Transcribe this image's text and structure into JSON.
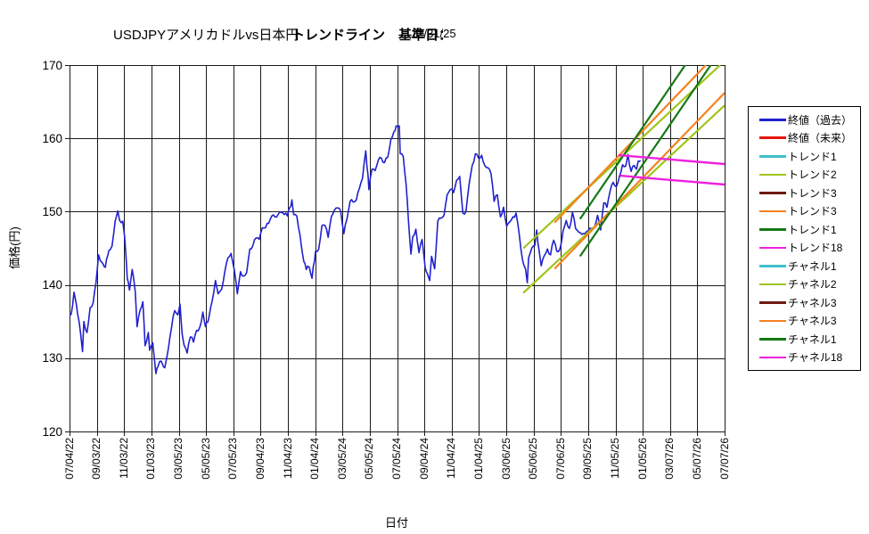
{
  "title": {
    "instrument": "USDJPYアメリカドルvs日本円",
    "section": "トレンドライン　基準日：",
    "base_date": "12/31/25"
  },
  "y_axis": {
    "label": "価格(円)",
    "min": 120,
    "max": 170,
    "step": 10,
    "ticks": [
      "170",
      "160",
      "150",
      "140",
      "130",
      "120"
    ]
  },
  "x_axis": {
    "label": "日付",
    "start_date": "2022-07-04",
    "end_date": "2026-07-07",
    "tick_interval_days": 61,
    "ticks": [
      "07/04/22",
      "09/03/22",
      "11/03/22",
      "01/03/23",
      "03/05/23",
      "05/05/23",
      "07/05/23",
      "09/04/23",
      "11/04/23",
      "01/04/24",
      "03/05/24",
      "05/05/24",
      "07/05/24",
      "09/04/24",
      "11/04/24",
      "01/04/25",
      "03/06/25",
      "05/06/25",
      "07/06/25",
      "09/05/25",
      "11/05/25",
      "01/05/26",
      "03/07/26",
      "05/07/26",
      "07/07/26"
    ]
  },
  "legend": {
    "items": [
      {
        "label": "終値（過去）",
        "color": "#2121CE",
        "thickness": 3
      },
      {
        "label": "終値（未来）",
        "color": "#E8150D",
        "thickness": 3
      },
      {
        "label": "トレンド1",
        "color": "#3FC0CC",
        "thickness": 2.5
      },
      {
        "label": "トレンド2",
        "color": "#9FC519",
        "thickness": 2.5
      },
      {
        "label": "トレンド3",
        "color": "#6D1A12",
        "thickness": 2.5
      },
      {
        "label": "トレンド3",
        "color": "#F5821F",
        "thickness": 2.5
      },
      {
        "label": "トレンド1",
        "color": "#157915",
        "thickness": 2.5
      },
      {
        "label": "トレンド18",
        "color": "#EE22DD",
        "thickness": 2.5
      },
      {
        "label": "チャネル1",
        "color": "#3FC0CC",
        "thickness": 2.5
      },
      {
        "label": "チャネル2",
        "color": "#9FC519",
        "thickness": 2.5
      },
      {
        "label": "チャネル3",
        "color": "#6D1A12",
        "thickness": 2.5
      },
      {
        "label": "チャネル3",
        "color": "#F5821F",
        "thickness": 2.5
      },
      {
        "label": "チャネル1",
        "color": "#157915",
        "thickness": 2.5
      },
      {
        "label": "チャネル18",
        "color": "#EE22DD",
        "thickness": 2.5
      }
    ]
  },
  "chart_data": {
    "type": "line",
    "title": "USDJPYアメリカドルvs日本円 トレンドライン 基準日：12/31/25",
    "xlabel": "日付",
    "ylabel": "価格(円)",
    "ylim": [
      120,
      170
    ],
    "x_range_dates": [
      "2022-07-04",
      "2026-07-07"
    ],
    "grid": true,
    "legend_position": "right",
    "base_date": "2025-12-31",
    "series": [
      {
        "name": "終値(過去)",
        "color": "#2121CE",
        "width": 1.6,
        "jitter": true,
        "points": [
          [
            "2022-07-04",
            135.7
          ],
          [
            "2022-07-08",
            136.1
          ],
          [
            "2022-07-14",
            139.0
          ],
          [
            "2022-07-22",
            136.1
          ],
          [
            "2022-07-29",
            133.2
          ],
          [
            "2022-08-02",
            130.9
          ],
          [
            "2022-08-05",
            135.0
          ],
          [
            "2022-08-12",
            133.5
          ],
          [
            "2022-08-19",
            136.9
          ],
          [
            "2022-08-26",
            137.6
          ],
          [
            "2022-09-01",
            140.2
          ],
          [
            "2022-09-07",
            144.1
          ],
          [
            "2022-09-14",
            143.1
          ],
          [
            "2022-09-22",
            142.4
          ],
          [
            "2022-09-30",
            144.7
          ],
          [
            "2022-10-07",
            145.3
          ],
          [
            "2022-10-14",
            148.7
          ],
          [
            "2022-10-20",
            150.1
          ],
          [
            "2022-10-24",
            148.8
          ],
          [
            "2022-10-31",
            148.7
          ],
          [
            "2022-11-04",
            146.6
          ],
          [
            "2022-11-10",
            140.9
          ],
          [
            "2022-11-15",
            139.3
          ],
          [
            "2022-11-21",
            142.1
          ],
          [
            "2022-11-28",
            139.0
          ],
          [
            "2022-12-02",
            134.3
          ],
          [
            "2022-12-09",
            136.6
          ],
          [
            "2022-12-15",
            137.7
          ],
          [
            "2022-12-20",
            131.7
          ],
          [
            "2022-12-27",
            133.5
          ],
          [
            "2022-12-30",
            131.1
          ],
          [
            "2023-01-06",
            132.1
          ],
          [
            "2023-01-13",
            127.9
          ],
          [
            "2023-01-18",
            128.9
          ],
          [
            "2023-01-25",
            129.6
          ],
          [
            "2023-02-02",
            128.7
          ],
          [
            "2023-02-10",
            131.4
          ],
          [
            "2023-02-17",
            134.2
          ],
          [
            "2023-02-24",
            136.5
          ],
          [
            "2023-03-03",
            135.9
          ],
          [
            "2023-03-08",
            137.4
          ],
          [
            "2023-03-13",
            133.2
          ],
          [
            "2023-03-17",
            131.8
          ],
          [
            "2023-03-24",
            130.7
          ],
          [
            "2023-03-31",
            132.9
          ],
          [
            "2023-04-07",
            132.2
          ],
          [
            "2023-04-14",
            133.8
          ],
          [
            "2023-04-21",
            134.2
          ],
          [
            "2023-04-28",
            136.3
          ],
          [
            "2023-05-04",
            134.3
          ],
          [
            "2023-05-12",
            135.7
          ],
          [
            "2023-05-19",
            137.9
          ],
          [
            "2023-05-26",
            140.6
          ],
          [
            "2023-06-01",
            138.8
          ],
          [
            "2023-06-09",
            139.4
          ],
          [
            "2023-06-16",
            141.8
          ],
          [
            "2023-06-23",
            143.7
          ],
          [
            "2023-06-30",
            144.3
          ],
          [
            "2023-07-07",
            142.1
          ],
          [
            "2023-07-14",
            138.8
          ],
          [
            "2023-07-21",
            141.8
          ],
          [
            "2023-07-28",
            141.2
          ],
          [
            "2023-08-04",
            141.7
          ],
          [
            "2023-08-11",
            144.9
          ],
          [
            "2023-08-18",
            145.4
          ],
          [
            "2023-08-25",
            146.4
          ],
          [
            "2023-09-01",
            146.2
          ],
          [
            "2023-09-08",
            147.8
          ],
          [
            "2023-09-15",
            147.8
          ],
          [
            "2023-09-22",
            148.4
          ],
          [
            "2023-09-29",
            149.4
          ],
          [
            "2023-10-06",
            149.3
          ],
          [
            "2023-10-13",
            149.6
          ],
          [
            "2023-10-20",
            149.9
          ],
          [
            "2023-10-27",
            149.6
          ],
          [
            "2023-11-03",
            149.4
          ],
          [
            "2023-11-13",
            151.6
          ],
          [
            "2023-11-17",
            149.6
          ],
          [
            "2023-11-24",
            149.4
          ],
          [
            "2023-12-01",
            146.8
          ],
          [
            "2023-12-07",
            144.1
          ],
          [
            "2023-12-15",
            142.1
          ],
          [
            "2023-12-22",
            142.4
          ],
          [
            "2023-12-28",
            140.9
          ],
          [
            "2024-01-05",
            144.6
          ],
          [
            "2024-01-12",
            144.9
          ],
          [
            "2024-01-19",
            148.1
          ],
          [
            "2024-01-26",
            148.1
          ],
          [
            "2024-02-02",
            146.5
          ],
          [
            "2024-02-09",
            149.3
          ],
          [
            "2024-02-16",
            150.2
          ],
          [
            "2024-02-23",
            150.5
          ],
          [
            "2024-03-01",
            150.1
          ],
          [
            "2024-03-08",
            147.0
          ],
          [
            "2024-03-15",
            149.0
          ],
          [
            "2024-03-22",
            151.4
          ],
          [
            "2024-03-29",
            151.3
          ],
          [
            "2024-04-05",
            151.6
          ],
          [
            "2024-04-12",
            153.2
          ],
          [
            "2024-04-19",
            154.6
          ],
          [
            "2024-04-26",
            158.3
          ],
          [
            "2024-05-01",
            155.0
          ],
          [
            "2024-05-03",
            153.0
          ],
          [
            "2024-05-10",
            155.8
          ],
          [
            "2024-05-17",
            155.6
          ],
          [
            "2024-05-24",
            157.0
          ],
          [
            "2024-05-31",
            157.3
          ],
          [
            "2024-06-07",
            156.7
          ],
          [
            "2024-06-14",
            157.4
          ],
          [
            "2024-06-21",
            159.8
          ],
          [
            "2024-06-28",
            160.9
          ],
          [
            "2024-07-03",
            161.7
          ],
          [
            "2024-07-10",
            161.7
          ],
          [
            "2024-07-12",
            157.9
          ],
          [
            "2024-07-19",
            157.5
          ],
          [
            "2024-07-25",
            153.9
          ],
          [
            "2024-08-02",
            146.5
          ],
          [
            "2024-08-05",
            144.2
          ],
          [
            "2024-08-09",
            146.6
          ],
          [
            "2024-08-16",
            147.6
          ],
          [
            "2024-08-23",
            144.4
          ],
          [
            "2024-08-30",
            146.2
          ],
          [
            "2024-09-06",
            142.3
          ],
          [
            "2024-09-16",
            140.6
          ],
          [
            "2024-09-20",
            143.9
          ],
          [
            "2024-09-27",
            142.2
          ],
          [
            "2024-10-04",
            148.7
          ],
          [
            "2024-10-11",
            149.1
          ],
          [
            "2024-10-18",
            149.5
          ],
          [
            "2024-10-25",
            152.3
          ],
          [
            "2024-11-01",
            153.0
          ],
          [
            "2024-11-08",
            152.6
          ],
          [
            "2024-11-15",
            154.3
          ],
          [
            "2024-11-22",
            154.8
          ],
          [
            "2024-11-29",
            149.8
          ],
          [
            "2024-12-06",
            150.0
          ],
          [
            "2024-12-13",
            153.7
          ],
          [
            "2024-12-20",
            156.3
          ],
          [
            "2024-12-27",
            157.9
          ],
          [
            "2025-01-03",
            157.3
          ],
          [
            "2025-01-10",
            157.7
          ],
          [
            "2025-01-17",
            156.3
          ],
          [
            "2025-01-24",
            156.0
          ],
          [
            "2025-01-31",
            155.2
          ],
          [
            "2025-02-07",
            151.4
          ],
          [
            "2025-02-14",
            152.3
          ],
          [
            "2025-02-21",
            149.3
          ],
          [
            "2025-02-28",
            150.6
          ],
          [
            "2025-03-07",
            148.0
          ],
          [
            "2025-03-14",
            148.6
          ],
          [
            "2025-03-21",
            149.3
          ],
          [
            "2025-03-28",
            149.8
          ],
          [
            "2025-04-04",
            146.9
          ],
          [
            "2025-04-11",
            143.5
          ],
          [
            "2025-04-18",
            142.2
          ],
          [
            "2025-04-22",
            140.3
          ],
          [
            "2025-04-25",
            143.7
          ],
          [
            "2025-05-02",
            145.0
          ],
          [
            "2025-05-09",
            145.4
          ],
          [
            "2025-05-13",
            147.5
          ],
          [
            "2025-05-16",
            145.7
          ],
          [
            "2025-05-23",
            142.6
          ],
          [
            "2025-05-30",
            144.0
          ],
          [
            "2025-06-06",
            144.9
          ],
          [
            "2025-06-13",
            144.1
          ],
          [
            "2025-06-20",
            146.1
          ],
          [
            "2025-06-27",
            144.6
          ],
          [
            "2025-07-04",
            144.9
          ],
          [
            "2025-07-11",
            147.4
          ],
          [
            "2025-07-18",
            148.8
          ],
          [
            "2025-07-25",
            147.7
          ],
          [
            "2025-08-01",
            149.9
          ],
          [
            "2025-08-08",
            147.7
          ],
          [
            "2025-08-15",
            147.2
          ],
          [
            "2025-08-22",
            146.9
          ],
          [
            "2025-08-29",
            147.0
          ],
          [
            "2025-09-05",
            147.4
          ],
          [
            "2025-09-12",
            147.7
          ],
          [
            "2025-09-19",
            147.9
          ],
          [
            "2025-09-26",
            149.5
          ],
          [
            "2025-10-03",
            147.5
          ],
          [
            "2025-10-10",
            151.2
          ],
          [
            "2025-10-17",
            150.6
          ],
          [
            "2025-10-24",
            152.8
          ],
          [
            "2025-10-31",
            154.0
          ],
          [
            "2025-11-07",
            153.4
          ],
          [
            "2025-11-14",
            154.8
          ],
          [
            "2025-11-21",
            156.4
          ],
          [
            "2025-11-28",
            156.2
          ],
          [
            "2025-12-03",
            157.8
          ],
          [
            "2025-12-10",
            155.5
          ],
          [
            "2025-12-17",
            156.3
          ],
          [
            "2025-12-22",
            155.8
          ],
          [
            "2025-12-26",
            156.9
          ],
          [
            "2025-12-31",
            157.0
          ]
        ]
      },
      {
        "name": "トレンド2",
        "color": "#9FC519",
        "width": 2.2,
        "points": [
          [
            "2025-04-13",
            145.0
          ],
          [
            "2026-06-27",
            170.0
          ]
        ]
      },
      {
        "name": "チャネル2",
        "color": "#9FC519",
        "width": 2.2,
        "points": [
          [
            "2025-04-13",
            138.9
          ],
          [
            "2026-07-07",
            164.5
          ]
        ]
      },
      {
        "name": "トレンド3",
        "color": "#F5821F",
        "width": 2.2,
        "points": [
          [
            "2025-06-22",
            148.5
          ],
          [
            "2026-05-26",
            170.0
          ]
        ]
      },
      {
        "name": "チャネル3",
        "color": "#F5821F",
        "width": 2.2,
        "points": [
          [
            "2025-06-22",
            142.2
          ],
          [
            "2026-07-07",
            166.2
          ]
        ]
      },
      {
        "name": "トレンド1",
        "color": "#157915",
        "width": 2.2,
        "points": [
          [
            "2025-08-18",
            149.0
          ],
          [
            "2026-04-10",
            170.0
          ]
        ]
      },
      {
        "name": "チャネル1",
        "color": "#157915",
        "width": 2.2,
        "points": [
          [
            "2025-08-18",
            143.9
          ],
          [
            "2026-06-06",
            170.0
          ]
        ]
      },
      {
        "name": "トレンド18",
        "color": "#EE22DD",
        "width": 2.4,
        "points": [
          [
            "2025-11-12",
            157.7
          ],
          [
            "2026-07-07",
            156.5
          ]
        ]
      },
      {
        "name": "チャネル18",
        "color": "#EE22DD",
        "width": 2.4,
        "points": [
          [
            "2025-11-16",
            154.9
          ],
          [
            "2026-07-07",
            153.7
          ]
        ]
      }
    ]
  },
  "render": {
    "jitter_amplitude": 0.32,
    "jitter_seed": 1234,
    "jitter_step_days": 2.5
  }
}
